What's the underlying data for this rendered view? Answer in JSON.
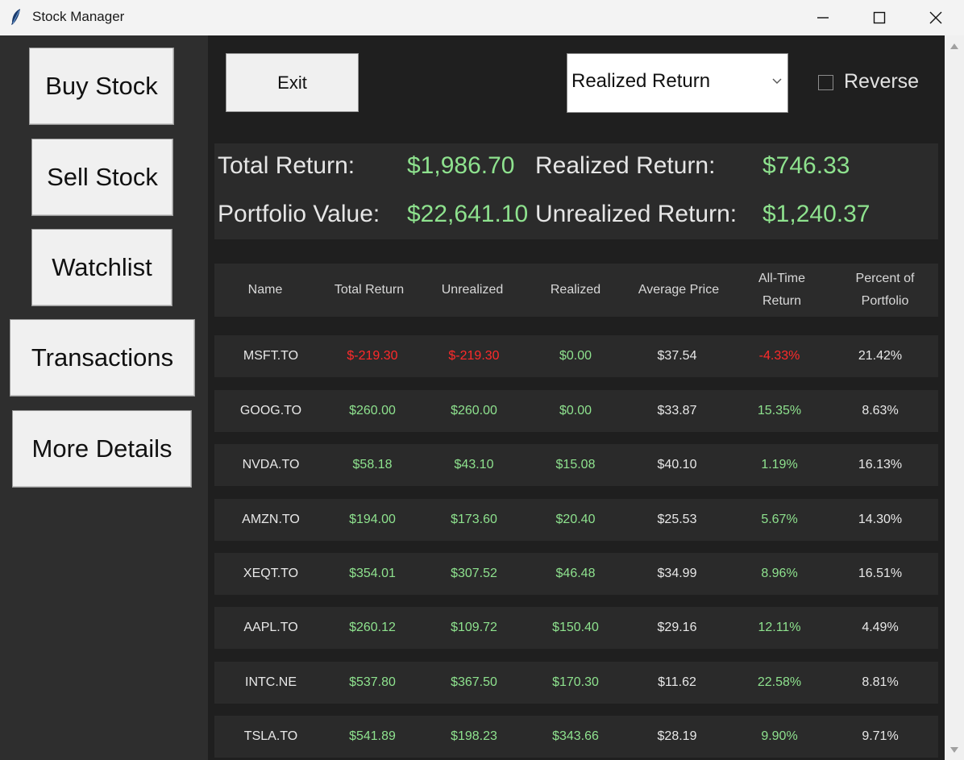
{
  "window": {
    "title": "Stock Manager"
  },
  "sidebar": {
    "buttons": [
      "Buy Stock",
      "Sell Stock",
      "Watchlist",
      "Transactions",
      "More Details"
    ]
  },
  "toolbar": {
    "exit_label": "Exit",
    "sort_selected": "Realized Return",
    "reverse_label": "Reverse",
    "reverse_checked": false
  },
  "summary": {
    "total_return_label": "Total Return:",
    "total_return_value": "$1,986.70",
    "realized_label": "Realized Return:",
    "realized_value": "$746.33",
    "portfolio_label": "Portfolio Value:",
    "portfolio_value": "$22,641.10",
    "unrealized_label": "Unrealized Return:",
    "unrealized_value": "$1,240.37"
  },
  "table": {
    "headers": [
      "Name",
      "Total Return",
      "Unrealized",
      "Realized",
      "Average Price",
      "All-Time Return",
      "Percent of Portfolio"
    ],
    "rows": [
      [
        "MSFT.TO",
        "$-219.30",
        "$-219.30",
        "$0.00",
        "$37.54",
        "-4.33%",
        "21.42%"
      ],
      [
        "GOOG.TO",
        "$260.00",
        "$260.00",
        "$0.00",
        "$33.87",
        "15.35%",
        "8.63%"
      ],
      [
        "NVDA.TO",
        "$58.18",
        "$43.10",
        "$15.08",
        "$40.10",
        "1.19%",
        "16.13%"
      ],
      [
        "AMZN.TO",
        "$194.00",
        "$173.60",
        "$20.40",
        "$25.53",
        "5.67%",
        "14.30%"
      ],
      [
        "XEQT.TO",
        "$354.01",
        "$307.52",
        "$46.48",
        "$34.99",
        "8.96%",
        "16.51%"
      ],
      [
        "AAPL.TO",
        "$260.12",
        "$109.72",
        "$150.40",
        "$29.16",
        "12.11%",
        "4.49%"
      ],
      [
        "INTC.NE",
        "$537.80",
        "$367.50",
        "$170.30",
        "$11.62",
        "22.58%",
        "8.81%"
      ],
      [
        "TSLA.TO",
        "$541.89",
        "$198.23",
        "$343.66",
        "$28.19",
        "9.90%",
        "9.71%"
      ]
    ]
  },
  "colors": {
    "positive": "#8ee28e",
    "negative": "#ff2a2a"
  }
}
